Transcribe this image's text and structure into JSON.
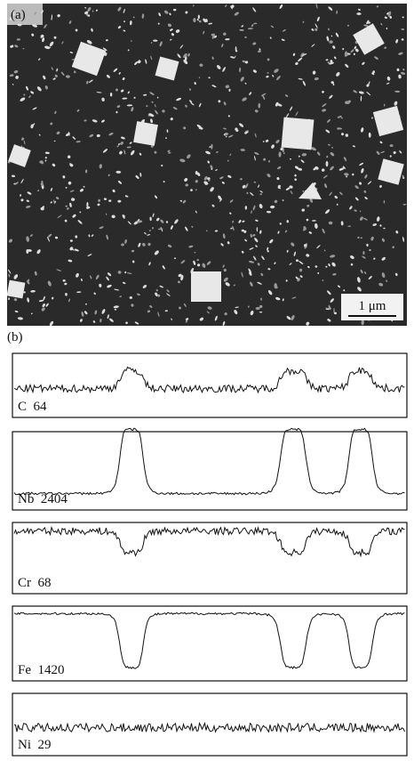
{
  "figure": {
    "panel_a": {
      "label": "(a)",
      "scale_bar": "1 μm"
    },
    "panel_b": {
      "label": "(b)",
      "scans": [
        "C  64",
        "Nb  2404",
        "Cr  68",
        "Fe  1420",
        "Ni  29"
      ]
    }
  }
}
